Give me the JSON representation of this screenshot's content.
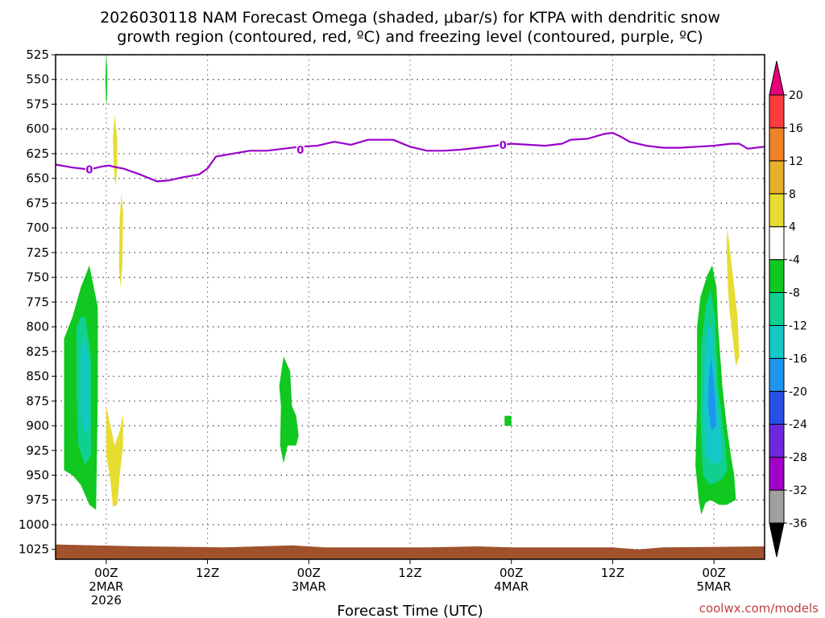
{
  "chart_data": {
    "type": "heatmap",
    "title_line1": "2026030118 NAM Forecast Omega (shaded, μbar/s) for KTPA with dendritic snow",
    "title_line2": "growth region (contoured, red, ºC) and freezing level (contoured, purple, ºC)",
    "xlabel": "Forecast Time (UTC)",
    "ylabel": "",
    "credit": "coolwx.com/models",
    "x_unit": "hours since 2026-03-01 18Z",
    "xlim": [
      0,
      84
    ],
    "ylim": [
      1035,
      525
    ],
    "y_ticks": [
      525,
      550,
      575,
      600,
      625,
      650,
      675,
      700,
      725,
      750,
      775,
      800,
      825,
      850,
      875,
      900,
      925,
      950,
      975,
      1000,
      1025
    ],
    "x_ticks": [
      {
        "h": 6,
        "lines": [
          "00Z",
          "2MAR",
          "2026"
        ]
      },
      {
        "h": 18,
        "lines": [
          "12Z"
        ]
      },
      {
        "h": 30,
        "lines": [
          "00Z",
          "3MAR"
        ]
      },
      {
        "h": 42,
        "lines": [
          "12Z"
        ]
      },
      {
        "h": 54,
        "lines": [
          "00Z",
          "4MAR"
        ]
      },
      {
        "h": 66,
        "lines": [
          "12Z"
        ]
      },
      {
        "h": 78,
        "lines": [
          "00Z",
          "5MAR"
        ]
      }
    ],
    "colorbar": {
      "levels": [
        -36,
        -32,
        -28,
        -24,
        -20,
        -16,
        -12,
        -8,
        -4,
        4,
        8,
        12,
        16,
        20
      ],
      "label_levels": [
        -36,
        -32,
        -28,
        -24,
        -20,
        -16,
        -12,
        -8,
        -4,
        4,
        8,
        12,
        16,
        20
      ],
      "colors": [
        "#a0a0a0",
        "#a000c8",
        "#6e28dc",
        "#2850e6",
        "#1e96f0",
        "#14c8c8",
        "#10d090",
        "#10c820",
        "#ffffff",
        "#e6dc32",
        "#e6af2d",
        "#f08228",
        "#fa3c3c"
      ],
      "low_color": "#000000",
      "high_color": "#e6007a"
    },
    "terrain_color": "#a0522d",
    "terrain": [
      [
        0,
        1020
      ],
      [
        10,
        1022
      ],
      [
        20,
        1023
      ],
      [
        24,
        1022
      ],
      [
        28,
        1021
      ],
      [
        32,
        1023
      ],
      [
        44,
        1023
      ],
      [
        50,
        1022
      ],
      [
        54,
        1023
      ],
      [
        66,
        1023
      ],
      [
        69,
        1025
      ],
      [
        72,
        1023
      ],
      [
        84,
        1022
      ]
    ],
    "freezing_level": {
      "color": "#9900cc",
      "label": "0",
      "label_positions": [
        [
          4,
          641
        ],
        [
          29,
          621
        ],
        [
          53,
          616
        ]
      ],
      "points": [
        [
          0,
          636
        ],
        [
          2,
          639
        ],
        [
          4,
          641
        ],
        [
          5.5,
          638
        ],
        [
          6.3,
          637
        ],
        [
          7,
          638.5
        ],
        [
          8,
          640
        ],
        [
          10,
          646
        ],
        [
          12,
          653
        ],
        [
          13.5,
          652
        ],
        [
          15,
          649
        ],
        [
          17,
          646
        ],
        [
          18,
          640
        ],
        [
          19,
          628
        ],
        [
          21,
          625
        ],
        [
          23,
          622
        ],
        [
          25,
          622
        ],
        [
          27,
          620
        ],
        [
          29,
          618
        ],
        [
          31,
          617
        ],
        [
          33,
          613
        ],
        [
          35,
          616
        ],
        [
          37,
          611
        ],
        [
          40,
          611
        ],
        [
          42,
          618
        ],
        [
          44,
          622
        ],
        [
          46,
          622
        ],
        [
          48,
          621
        ],
        [
          50,
          619
        ],
        [
          52,
          617
        ],
        [
          54,
          615
        ],
        [
          56,
          616
        ],
        [
          58,
          617
        ],
        [
          60,
          615
        ],
        [
          61,
          611
        ],
        [
          63,
          610
        ],
        [
          65,
          605
        ],
        [
          66,
          604
        ],
        [
          67,
          608
        ],
        [
          68,
          613
        ],
        [
          70,
          617
        ],
        [
          72,
          619
        ],
        [
          74,
          619
        ],
        [
          76,
          618
        ],
        [
          78,
          617
        ],
        [
          80,
          615
        ],
        [
          81,
          615
        ],
        [
          82,
          620
        ],
        [
          84,
          618
        ]
      ]
    },
    "shaded_regions": [
      {
        "value": -6,
        "color": "#10c820",
        "points": [
          [
            1,
            812
          ],
          [
            2,
            790
          ],
          [
            3,
            760
          ],
          [
            4,
            738
          ],
          [
            5,
            780
          ],
          [
            5,
            870
          ],
          [
            4.8,
            985
          ],
          [
            4,
            980
          ],
          [
            3,
            960
          ],
          [
            2,
            950
          ],
          [
            1,
            945
          ]
        ]
      },
      {
        "value": -10,
        "color": "#10d090",
        "points": [
          [
            2.5,
            800
          ],
          [
            3,
            790
          ],
          [
            3.5,
            790
          ],
          [
            4.2,
            830
          ],
          [
            4.2,
            930
          ],
          [
            3.5,
            940
          ],
          [
            2.7,
            920
          ],
          [
            2.5,
            870
          ]
        ]
      },
      {
        "value": -14,
        "color": "#14c8c8",
        "points": [
          [
            3,
            820
          ],
          [
            3.5,
            810
          ],
          [
            3.9,
            840
          ],
          [
            3.9,
            900
          ],
          [
            3.5,
            910
          ],
          [
            3,
            890
          ]
        ]
      },
      {
        "value": 6,
        "color": "#e6dc32",
        "points": [
          [
            6,
            880
          ],
          [
            6.5,
            900
          ],
          [
            7,
            920
          ],
          [
            7.6,
            905
          ],
          [
            8,
            888
          ],
          [
            8,
            920
          ],
          [
            7.6,
            950
          ],
          [
            7.3,
            980
          ],
          [
            6.8,
            982
          ],
          [
            6.5,
            955
          ],
          [
            6,
            930
          ]
        ]
      },
      {
        "value": 6,
        "color": "#e6dc32",
        "points": [
          [
            7,
            585
          ],
          [
            7.3,
            610
          ],
          [
            7.3,
            640
          ],
          [
            7.1,
            658
          ],
          [
            6.9,
            640
          ],
          [
            6.8,
            610
          ]
        ]
      },
      {
        "value": 6,
        "color": "#e6dc32",
        "points": [
          [
            7.8,
            665
          ],
          [
            8,
            685
          ],
          [
            7.9,
            740
          ],
          [
            7.7,
            760
          ],
          [
            7.5,
            740
          ],
          [
            7.6,
            690
          ]
        ]
      },
      {
        "value": -6,
        "color": "#10c820",
        "points": [
          [
            6,
            520
          ],
          [
            6.1,
            540
          ],
          [
            6.1,
            570
          ],
          [
            6,
            576
          ],
          [
            5.9,
            550
          ]
        ]
      },
      {
        "value": -6,
        "color": "#10c820",
        "points": [
          [
            27,
            830
          ],
          [
            27.8,
            845
          ],
          [
            28,
            880
          ],
          [
            28.5,
            890
          ],
          [
            28.8,
            910
          ],
          [
            28.5,
            920
          ],
          [
            27.5,
            920
          ],
          [
            27,
            938
          ],
          [
            26.6,
            920
          ],
          [
            26.7,
            880
          ],
          [
            26.5,
            860
          ]
        ]
      },
      {
        "value": -6,
        "color": "#10c820",
        "points": [
          [
            53.2,
            890
          ],
          [
            54,
            890
          ],
          [
            54,
            900
          ],
          [
            53.2,
            900
          ]
        ]
      },
      {
        "value": -6,
        "color": "#10c820",
        "points": [
          [
            76,
            800
          ],
          [
            76.4,
            770
          ],
          [
            77.2,
            748
          ],
          [
            77.8,
            738
          ],
          [
            78.3,
            760
          ],
          [
            78.5,
            800
          ],
          [
            79,
            860
          ],
          [
            79.5,
            900
          ],
          [
            80,
            930
          ],
          [
            80.4,
            950
          ],
          [
            80.6,
            975
          ],
          [
            79.5,
            980
          ],
          [
            78.6,
            980
          ],
          [
            77.6,
            975
          ],
          [
            77,
            978
          ],
          [
            76.5,
            990
          ],
          [
            76.2,
            975
          ],
          [
            75.8,
            940
          ],
          [
            76,
            880
          ]
        ]
      },
      {
        "value": -10,
        "color": "#10d090",
        "points": [
          [
            76.5,
            820
          ],
          [
            77,
            780
          ],
          [
            77.6,
            762
          ],
          [
            78.1,
            790
          ],
          [
            78.5,
            860
          ],
          [
            79.2,
            910
          ],
          [
            79.6,
            945
          ],
          [
            78.8,
            955
          ],
          [
            77.5,
            960
          ],
          [
            76.7,
            950
          ],
          [
            76.4,
            890
          ]
        ]
      },
      {
        "value": -14,
        "color": "#14c8c8",
        "points": [
          [
            76.9,
            830
          ],
          [
            77.3,
            800
          ],
          [
            77.8,
            800
          ],
          [
            78.2,
            860
          ],
          [
            78.8,
            910
          ],
          [
            79,
            935
          ],
          [
            78,
            940
          ],
          [
            77,
            930
          ],
          [
            76.8,
            880
          ]
        ]
      },
      {
        "value": -18,
        "color": "#1e96f0",
        "points": [
          [
            77.4,
            850
          ],
          [
            77.7,
            830
          ],
          [
            78.1,
            870
          ],
          [
            78.3,
            900
          ],
          [
            77.7,
            905
          ],
          [
            77.3,
            880
          ]
        ]
      },
      {
        "value": 6,
        "color": "#e6dc32",
        "points": [
          [
            79.6,
            700
          ],
          [
            80,
            730
          ],
          [
            80.4,
            760
          ],
          [
            80.8,
            790
          ],
          [
            81,
            830
          ],
          [
            80.6,
            840
          ],
          [
            80.2,
            810
          ],
          [
            79.8,
            780
          ],
          [
            79.6,
            750
          ],
          [
            79.5,
            720
          ]
        ]
      }
    ]
  }
}
